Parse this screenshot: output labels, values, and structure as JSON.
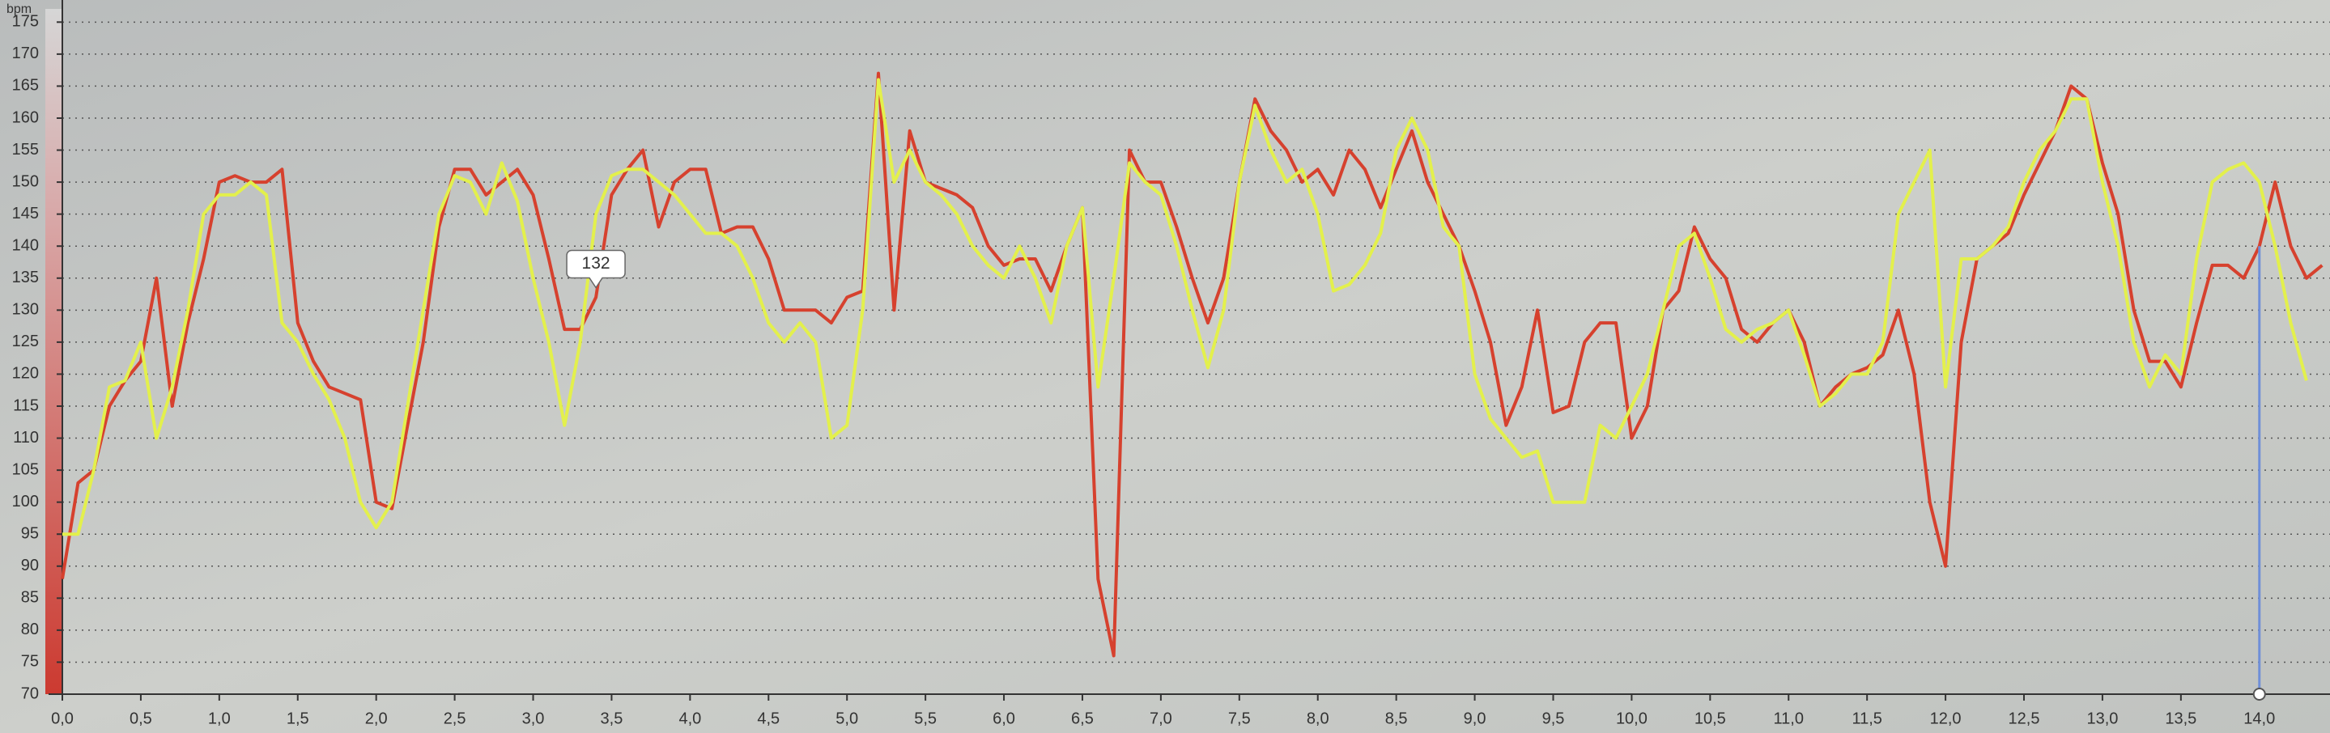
{
  "chart_data": {
    "type": "line",
    "y_label": "bpm",
    "x": [
      0.0,
      0.1,
      0.2,
      0.3,
      0.4,
      0.5,
      0.6,
      0.7,
      0.8,
      0.9,
      1.0,
      1.1,
      1.2,
      1.3,
      1.4,
      1.5,
      1.6,
      1.7,
      1.8,
      1.9,
      2.0,
      2.1,
      2.2,
      2.3,
      2.4,
      2.5,
      2.6,
      2.7,
      2.8,
      2.9,
      3.0,
      3.1,
      3.2,
      3.3,
      3.4,
      3.5,
      3.6,
      3.7,
      3.8,
      3.9,
      4.0,
      4.1,
      4.2,
      4.3,
      4.4,
      4.5,
      4.6,
      4.7,
      4.8,
      4.9,
      5.0,
      5.1,
      5.2,
      5.3,
      5.4,
      5.5,
      5.6,
      5.7,
      5.8,
      5.9,
      6.0,
      6.1,
      6.2,
      6.3,
      6.4,
      6.5,
      6.6,
      6.7,
      6.8,
      6.9,
      7.0,
      7.1,
      7.2,
      7.3,
      7.4,
      7.5,
      7.6,
      7.7,
      7.8,
      7.9,
      8.0,
      8.1,
      8.2,
      8.3,
      8.4,
      8.5,
      8.6,
      8.7,
      8.8,
      8.9,
      9.0,
      9.1,
      9.2,
      9.3,
      9.4,
      9.5,
      9.6,
      9.7,
      9.8,
      9.9,
      10.0,
      10.1,
      10.2,
      10.3,
      10.4,
      10.5,
      10.6,
      10.7,
      10.8,
      10.9,
      11.0,
      11.1,
      11.2,
      11.3,
      11.4,
      11.5,
      11.6,
      11.7,
      11.8,
      11.9,
      12.0,
      12.1,
      12.2,
      12.3,
      12.4,
      12.5,
      12.6,
      12.7,
      12.8,
      12.9,
      13.0,
      13.1,
      13.2,
      13.3,
      13.4,
      13.5,
      13.6,
      13.7,
      13.8,
      13.9,
      14.0,
      14.1,
      14.2,
      14.3,
      14.4
    ],
    "series": [
      {
        "color": "#d6412e",
        "values": [
          88,
          103,
          105,
          115,
          119,
          122,
          135,
          115,
          128,
          138,
          150,
          151,
          150,
          150,
          152,
          128,
          122,
          118,
          117,
          116,
          100,
          99,
          112,
          125,
          143,
          152,
          152,
          148,
          150,
          152,
          148,
          138,
          127,
          127,
          132,
          148,
          152,
          155,
          143,
          150,
          152,
          152,
          142,
          143,
          143,
          138,
          130,
          130,
          130,
          128,
          132,
          133,
          167,
          130,
          158,
          150,
          149,
          148,
          146,
          140,
          137,
          138,
          138,
          133,
          140,
          146,
          88,
          76,
          155,
          150,
          150,
          143,
          135,
          128,
          135,
          150,
          163,
          158,
          155,
          150,
          152,
          148,
          155,
          152,
          146,
          152,
          158,
          150,
          145,
          140,
          133,
          125,
          112,
          118,
          130,
          114,
          115,
          125,
          128,
          128,
          110,
          115,
          130,
          133,
          143,
          138,
          135,
          127,
          125,
          128,
          130,
          125,
          115,
          118,
          120,
          121,
          123,
          130,
          120,
          100,
          90,
          125,
          138,
          140,
          142,
          148,
          153,
          158,
          165,
          163,
          153,
          145,
          130,
          122,
          122,
          118,
          128,
          137,
          137,
          135,
          140,
          150,
          140,
          135,
          137
        ]
      },
      {
        "color": "#e3f04c",
        "values": [
          95,
          95,
          105,
          118,
          119,
          125,
          110,
          118,
          130,
          145,
          148,
          148,
          150,
          148,
          128,
          125,
          120,
          116,
          110,
          100,
          96,
          100,
          115,
          130,
          145,
          151,
          150,
          145,
          153,
          147,
          135,
          125,
          112,
          125,
          145,
          151,
          152,
          152,
          150,
          148,
          145,
          142,
          142,
          140,
          135,
          128,
          125,
          128,
          125,
          110,
          112,
          130,
          166,
          150,
          155,
          150,
          148,
          145,
          140,
          137,
          135,
          140,
          135,
          128,
          140,
          146,
          118,
          135,
          153,
          150,
          148,
          140,
          130,
          121,
          130,
          150,
          162,
          155,
          150,
          152,
          145,
          133,
          134,
          137,
          142,
          155,
          160,
          155,
          143,
          140,
          120,
          113,
          110,
          107,
          108,
          100,
          100,
          100,
          112,
          110,
          115,
          120,
          130,
          140,
          142,
          135,
          127,
          125,
          127,
          128,
          130,
          123,
          115,
          117,
          120,
          120,
          125,
          145,
          150,
          155,
          118,
          138,
          138,
          140,
          143,
          150,
          155,
          158,
          163,
          163,
          150,
          140,
          125,
          118,
          123,
          120,
          138,
          150,
          152,
          153,
          150,
          140,
          128,
          119,
          null
        ]
      }
    ],
    "xlim": [
      0,
      14.45
    ],
    "ylim": [
      70,
      177
    ],
    "yticks": [
      70,
      75,
      80,
      85,
      90,
      95,
      100,
      105,
      110,
      115,
      120,
      125,
      130,
      135,
      140,
      145,
      150,
      155,
      160,
      165,
      170,
      175
    ],
    "xticks": [
      {
        "value": 0,
        "label": "0,0"
      },
      {
        "value": 0.5,
        "label": "0,5"
      },
      {
        "value": 1,
        "label": "1,0"
      },
      {
        "value": 1.5,
        "label": "1,5"
      },
      {
        "value": 2,
        "label": "2,0"
      },
      {
        "value": 2.5,
        "label": "2,5"
      },
      {
        "value": 3,
        "label": "3,0"
      },
      {
        "value": 3.5,
        "label": "3,5"
      },
      {
        "value": 4,
        "label": "4,0"
      },
      {
        "value": 4.5,
        "label": "4,5"
      },
      {
        "value": 5,
        "label": "5,0"
      },
      {
        "value": 5.5,
        "label": "5,5"
      },
      {
        "value": 6,
        "label": "6,0"
      },
      {
        "value": 6.5,
        "label": "6,5"
      },
      {
        "value": 7,
        "label": "7,0"
      },
      {
        "value": 7.5,
        "label": "7,5"
      },
      {
        "value": 8,
        "label": "8,0"
      },
      {
        "value": 8.5,
        "label": "8,5"
      },
      {
        "value": 9,
        "label": "9,0"
      },
      {
        "value": 9.5,
        "label": "9,5"
      },
      {
        "value": 10,
        "label": "10,0"
      },
      {
        "value": 10.5,
        "label": "10,5"
      },
      {
        "value": 11,
        "label": "11,0"
      },
      {
        "value": 11.5,
        "label": "11,5"
      },
      {
        "value": 12,
        "label": "12,0"
      },
      {
        "value": 12.5,
        "label": "12,5"
      },
      {
        "value": 13,
        "label": "13,0"
      },
      {
        "value": 13.5,
        "label": "13,5"
      },
      {
        "value": 14,
        "label": "14,0"
      }
    ],
    "grid": true,
    "annotations": [
      {
        "x": 3.4,
        "value": 132
      }
    ],
    "cursor_x": 14.0,
    "cursor_color": "#6f8fd8"
  }
}
